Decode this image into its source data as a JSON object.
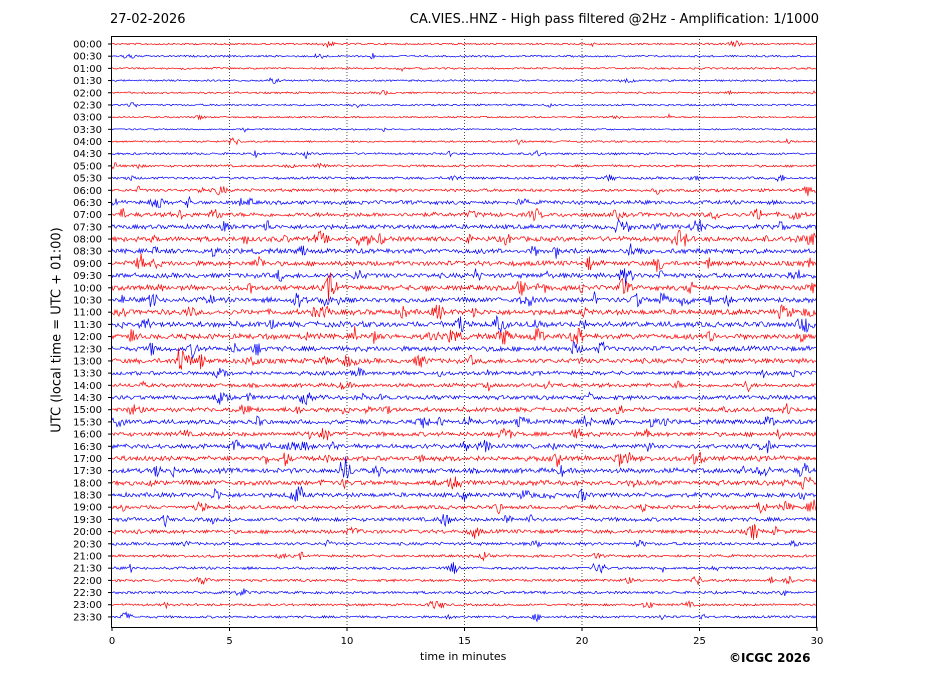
{
  "header": {
    "date": "27-02-2026",
    "title": "CA.VIES..HNZ - High pass filtered @2Hz - Amplification: 1/1000"
  },
  "footer": {
    "copyright": "©ICGC 2026"
  },
  "chart_data": {
    "type": "line",
    "title": "CA.VIES..HNZ - High pass filtered @2Hz - Amplification: 1/1000",
    "xlabel": "time in minutes",
    "ylabel": "UTC (local time = UTC + 01:00)",
    "xlim": [
      0,
      30
    ],
    "xticks": [
      0,
      5,
      10,
      15,
      20,
      25,
      30
    ],
    "grid": "vertical dotted at 5-minute ticks",
    "trace_colors": [
      "#ff0000",
      "#0000ff"
    ],
    "rows": [
      {
        "label": "00:00",
        "activity": 1,
        "color": "#ff0000"
      },
      {
        "label": "00:30",
        "activity": 1,
        "color": "#0000ff"
      },
      {
        "label": "01:00",
        "activity": 1,
        "color": "#ff0000"
      },
      {
        "label": "01:30",
        "activity": 1,
        "color": "#0000ff"
      },
      {
        "label": "02:00",
        "activity": 1,
        "color": "#ff0000"
      },
      {
        "label": "02:30",
        "activity": 1,
        "color": "#0000ff"
      },
      {
        "label": "03:00",
        "activity": 0.8,
        "color": "#ff0000"
      },
      {
        "label": "03:30",
        "activity": 0.8,
        "color": "#0000ff"
      },
      {
        "label": "04:00",
        "activity": 1,
        "color": "#ff0000"
      },
      {
        "label": "04:30",
        "activity": 1.3,
        "color": "#0000ff"
      },
      {
        "label": "05:00",
        "activity": 1.5,
        "color": "#ff0000"
      },
      {
        "label": "05:30",
        "activity": 1.6,
        "color": "#0000ff"
      },
      {
        "label": "06:00",
        "activity": 2.2,
        "color": "#ff0000"
      },
      {
        "label": "06:30",
        "activity": 3,
        "color": "#0000ff"
      },
      {
        "label": "07:00",
        "activity": 3.5,
        "color": "#ff0000"
      },
      {
        "label": "07:30",
        "activity": 3.5,
        "color": "#0000ff"
      },
      {
        "label": "08:00",
        "activity": 4,
        "color": "#ff0000"
      },
      {
        "label": "08:30",
        "activity": 4,
        "color": "#0000ff"
      },
      {
        "label": "09:00",
        "activity": 4,
        "color": "#ff0000"
      },
      {
        "label": "09:30",
        "activity": 4,
        "color": "#0000ff"
      },
      {
        "label": "10:00",
        "activity": 4,
        "color": "#ff0000"
      },
      {
        "label": "10:30",
        "activity": 4,
        "color": "#0000ff"
      },
      {
        "label": "11:00",
        "activity": 4.5,
        "color": "#ff0000"
      },
      {
        "label": "11:30",
        "activity": 4.5,
        "color": "#0000ff"
      },
      {
        "label": "12:00",
        "activity": 4.5,
        "color": "#ff0000"
      },
      {
        "label": "12:30",
        "activity": 4,
        "color": "#0000ff"
      },
      {
        "label": "13:00",
        "activity": 4,
        "color": "#ff0000"
      },
      {
        "label": "13:30",
        "activity": 3,
        "color": "#0000ff"
      },
      {
        "label": "14:00",
        "activity": 3,
        "color": "#ff0000"
      },
      {
        "label": "14:30",
        "activity": 3.5,
        "color": "#0000ff"
      },
      {
        "label": "15:00",
        "activity": 3.5,
        "color": "#ff0000"
      },
      {
        "label": "15:30",
        "activity": 3.5,
        "color": "#0000ff"
      },
      {
        "label": "16:00",
        "activity": 3.5,
        "color": "#ff0000"
      },
      {
        "label": "16:30",
        "activity": 3.5,
        "color": "#0000ff"
      },
      {
        "label": "17:00",
        "activity": 4,
        "color": "#ff0000"
      },
      {
        "label": "17:30",
        "activity": 4,
        "color": "#0000ff"
      },
      {
        "label": "18:00",
        "activity": 4,
        "color": "#ff0000"
      },
      {
        "label": "18:30",
        "activity": 3.5,
        "color": "#0000ff"
      },
      {
        "label": "19:00",
        "activity": 3,
        "color": "#ff0000"
      },
      {
        "label": "19:30",
        "activity": 3,
        "color": "#0000ff"
      },
      {
        "label": "20:00",
        "activity": 3,
        "color": "#ff0000"
      },
      {
        "label": "20:30",
        "activity": 2.2,
        "color": "#0000ff"
      },
      {
        "label": "21:00",
        "activity": 1.8,
        "color": "#ff0000"
      },
      {
        "label": "21:30",
        "activity": 1.8,
        "color": "#0000ff"
      },
      {
        "label": "22:00",
        "activity": 1.8,
        "color": "#ff0000"
      },
      {
        "label": "22:30",
        "activity": 1.8,
        "color": "#0000ff"
      },
      {
        "label": "23:00",
        "activity": 1.5,
        "color": "#ff0000"
      },
      {
        "label": "23:30",
        "activity": 1.5,
        "color": "#0000ff"
      }
    ]
  }
}
